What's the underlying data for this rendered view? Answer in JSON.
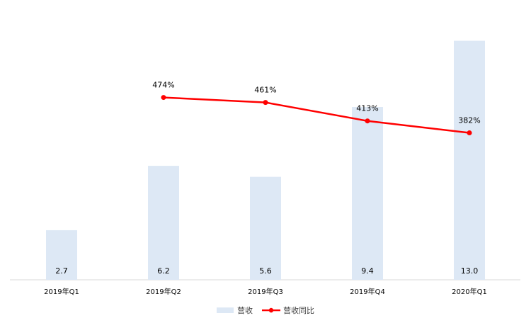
{
  "chart_data": {
    "type": "bar",
    "categories": [
      "2019年Q1",
      "2019年Q2",
      "2019年Q3",
      "2019年Q4",
      "2020年Q1"
    ],
    "series": [
      {
        "name": "营收",
        "type": "bar",
        "axis": "left",
        "values": [
          2.7,
          6.2,
          5.6,
          9.4,
          13.0
        ],
        "labels": [
          "2.7",
          "6.2",
          "5.6",
          "9.4",
          "13.0"
        ],
        "color": "#dde8f5"
      },
      {
        "name": "营收同比",
        "type": "line",
        "axis": "right",
        "values": [
          null,
          474,
          461,
          413,
          382
        ],
        "labels": [
          "",
          "474%",
          "461%",
          "413%",
          "382%"
        ],
        "color": "#ff0000"
      }
    ],
    "ylim_left": [
      0,
      13.6
    ],
    "ylim_right": [
      0,
      650
    ],
    "grid": false,
    "legend": "bottom"
  }
}
